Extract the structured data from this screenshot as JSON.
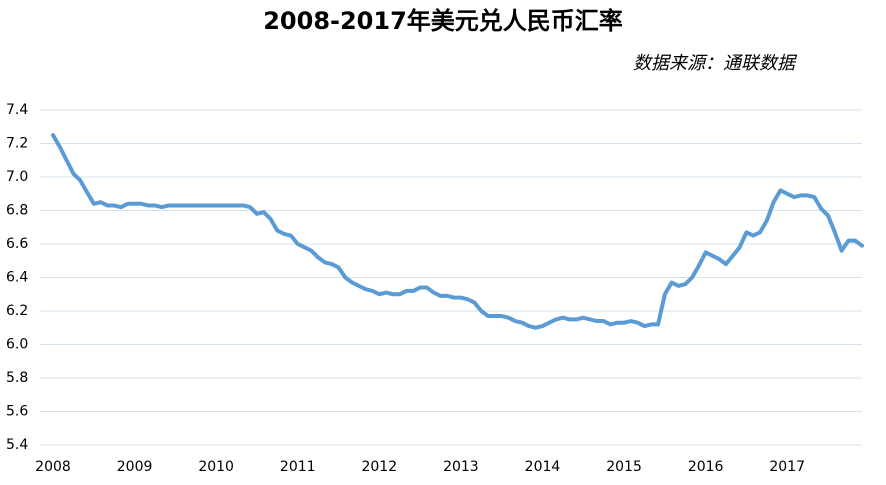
{
  "chart_data": {
    "type": "line",
    "title": "2008-2017年美元兑人民币汇率",
    "subtitle": "数据来源：通联数据",
    "categories": [
      "2008",
      null,
      null,
      null,
      null,
      null,
      null,
      null,
      null,
      null,
      null,
      null,
      "2009",
      null,
      null,
      null,
      null,
      null,
      null,
      null,
      null,
      null,
      null,
      null,
      "2010",
      null,
      null,
      null,
      null,
      null,
      null,
      null,
      null,
      null,
      null,
      null,
      "2011",
      null,
      null,
      null,
      null,
      null,
      null,
      null,
      null,
      null,
      null,
      null,
      "2012",
      null,
      null,
      null,
      null,
      null,
      null,
      null,
      null,
      null,
      null,
      null,
      "2013",
      null,
      null,
      null,
      null,
      null,
      null,
      null,
      null,
      null,
      null,
      null,
      "2014",
      null,
      null,
      null,
      null,
      null,
      null,
      null,
      null,
      null,
      null,
      null,
      "2015",
      null,
      null,
      null,
      null,
      null,
      null,
      null,
      null,
      null,
      null,
      null,
      "2016",
      null,
      null,
      null,
      null,
      null,
      null,
      null,
      null,
      null,
      null,
      null,
      "2017",
      null,
      null,
      null,
      null,
      null,
      null,
      null,
      null,
      null,
      null,
      null
    ],
    "values": [
      7.25,
      7.18,
      7.1,
      7.02,
      6.98,
      6.91,
      6.84,
      6.85,
      6.83,
      6.83,
      6.82,
      6.84,
      6.84,
      6.84,
      6.83,
      6.83,
      6.82,
      6.83,
      6.83,
      6.83,
      6.83,
      6.83,
      6.83,
      6.83,
      6.83,
      6.83,
      6.83,
      6.83,
      6.83,
      6.82,
      6.78,
      6.79,
      6.75,
      6.68,
      6.66,
      6.65,
      6.6,
      6.58,
      6.56,
      6.52,
      6.49,
      6.48,
      6.46,
      6.4,
      6.37,
      6.35,
      6.33,
      6.32,
      6.3,
      6.31,
      6.3,
      6.3,
      6.32,
      6.32,
      6.34,
      6.34,
      6.31,
      6.29,
      6.29,
      6.28,
      6.28,
      6.27,
      6.25,
      6.2,
      6.17,
      6.17,
      6.17,
      6.16,
      6.14,
      6.13,
      6.11,
      6.1,
      6.11,
      6.13,
      6.15,
      6.16,
      6.15,
      6.15,
      6.16,
      6.15,
      6.14,
      6.14,
      6.12,
      6.13,
      6.13,
      6.14,
      6.13,
      6.11,
      6.12,
      6.12,
      6.3,
      6.37,
      6.35,
      6.36,
      6.4,
      6.47,
      6.55,
      6.53,
      6.51,
      6.48,
      6.53,
      6.58,
      6.67,
      6.65,
      6.67,
      6.74,
      6.85,
      6.92,
      6.9,
      6.88,
      6.89,
      6.89,
      6.88,
      6.81,
      6.77,
      6.67,
      6.56,
      6.62,
      6.62,
      6.59
    ],
    "color": "#5b9bd5",
    "ylim": [
      5.4,
      7.4
    ],
    "yticks": [
      5.4,
      5.6,
      5.8,
      {
        "value": 6,
        "label": "6.0"
      },
      6.2,
      6.4,
      6.6,
      6.8,
      {
        "value": 7,
        "label": "7.0"
      },
      7.2,
      7.4
    ],
    "grid": true
  }
}
